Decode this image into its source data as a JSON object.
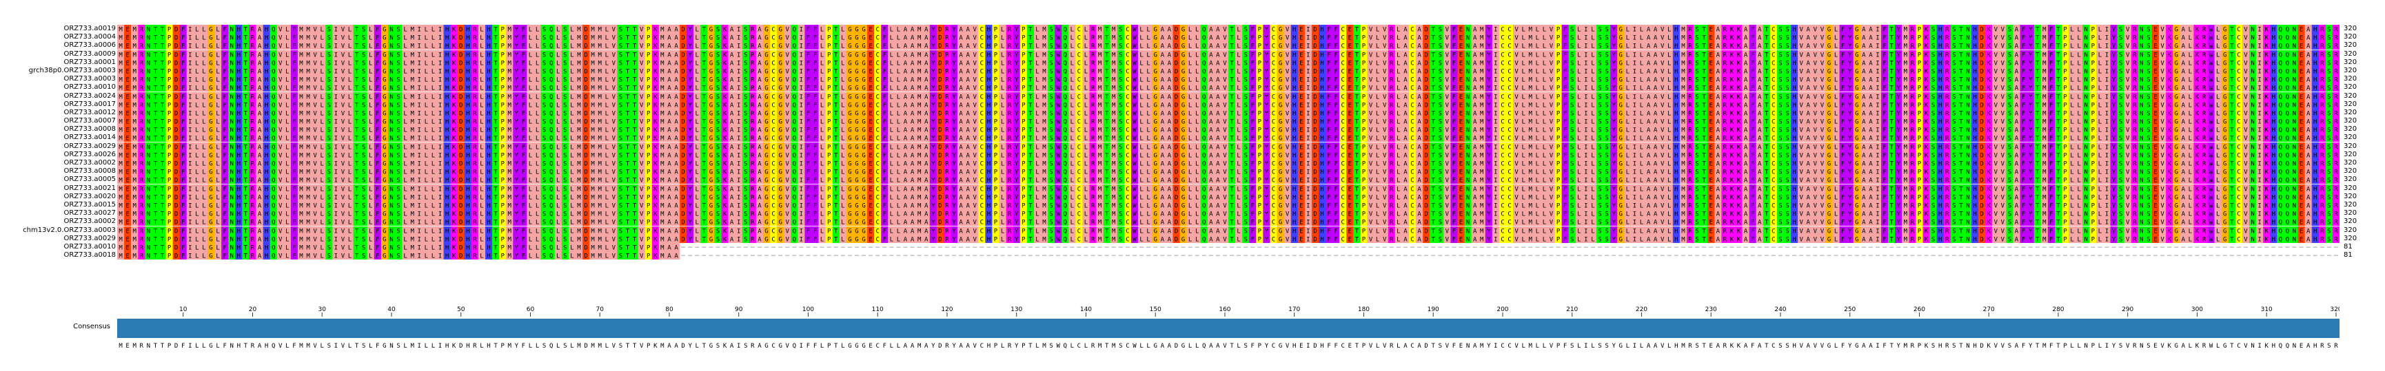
{
  "sequences": [
    {
      "name": "ORZ733.a0019",
      "length": "320"
    },
    {
      "name": "ORZ733.a0004",
      "length": "320"
    },
    {
      "name": "ORZ733.a0006",
      "length": "320"
    },
    {
      "name": "ORZ733.a0009",
      "length": "320"
    },
    {
      "name": "ORZ733.a0001",
      "length": "320"
    },
    {
      "name": "grch38p0.ORZ733.a0003",
      "length": "320"
    },
    {
      "name": "ORZ733.a0003",
      "length": "320"
    },
    {
      "name": "ORZ733.a0010",
      "length": "320"
    },
    {
      "name": "ORZ733.a0024",
      "length": "320"
    },
    {
      "name": "ORZ733.a0017",
      "length": "320"
    },
    {
      "name": "ORZ733.a0012",
      "length": "320"
    },
    {
      "name": "ORZ733.a0007",
      "length": "320"
    },
    {
      "name": "ORZ733.a0008",
      "length": "320"
    },
    {
      "name": "ORZ733.a0014",
      "length": "320"
    },
    {
      "name": "ORZ733.a0029",
      "length": "320"
    },
    {
      "name": "ORZ733.a0026",
      "length": "320"
    },
    {
      "name": "ORZ733.a0002",
      "length": "320"
    },
    {
      "name": "ORZ733.a0008",
      "length": "320"
    },
    {
      "name": "ORZ733.a0005",
      "length": "320"
    },
    {
      "name": "ORZ733.a0021",
      "length": "320"
    },
    {
      "name": "ORZ733.a0020",
      "length": "320"
    },
    {
      "name": "ORZ733.a0015",
      "length": "320"
    },
    {
      "name": "ORZ733.a0027",
      "length": "320"
    },
    {
      "name": "ORZ733.a0002",
      "length": "320"
    },
    {
      "name": "chm13v2.0.ORZ733.a0003",
      "length": "320"
    },
    {
      "name": "ORZ733.a0029",
      "length": "320"
    },
    {
      "name": "ORZ733.a0010",
      "length": "81"
    },
    {
      "name": "ORZ733.a0018",
      "length": "81"
    }
  ],
  "consensus": {
    "label": "Consensus",
    "sequence": "MEMRNTTPDFILLGLFNHTRAHQVLFMMVLSIVLTSLFGNSLMILLIHKDHRLHTPMYFLLSQLSLMDMMLVSTTVPKMAADYLTGSKAISRAGCGVQIFFLPTLGGGECFLLAAMAYDRYAAVCHPLRYPTLMSWQLCLRMTMSCWLLGAADGLLQAAVTLSFPYCGVHEIDHFFCETPVLVRLACADTSVFENAMYICCVLMLLVPFSLILSSYGLILAAVLHMRSTEARKKAFATCSSHVAVVGLFYGAAIFTYMRPKSHRSTNHDKVVSAFYTMFTPLLNPLIYSVRNSEVKGALKRWLGTCVNIKHQQNEAHRSR",
    "ruler_ticks": [
      "10",
      "20",
      "30",
      "40",
      "50",
      "60",
      "70",
      "80",
      "90",
      "100",
      "110",
      "120",
      "130",
      "140",
      "150",
      "160",
      "170",
      "180",
      "190",
      "200",
      "210",
      "220",
      "230",
      "240",
      "250",
      "260",
      "270",
      "280",
      "290",
      "300",
      "310",
      "320"
    ]
  },
  "colors": {
    "hydrophobic": "#f6a5a5",
    "aromatic": "#c000ff",
    "positive": "#ff00ff",
    "negative": "#ff4000",
    "polar": "#00ff00",
    "glycine": "#ffb400",
    "proline": "#ffff00",
    "cysteine": "#ffff00",
    "histidine": "#4040ff",
    "conservation_bar": "#2a7ab5"
  }
}
